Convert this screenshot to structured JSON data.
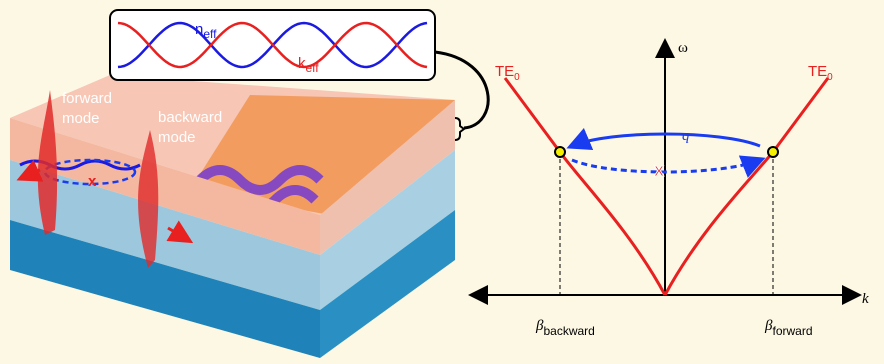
{
  "inset": {
    "n_label": {
      "main": "n",
      "sub": "eff"
    },
    "k_label": {
      "main": "k",
      "sub": "eff"
    }
  },
  "waveguide": {
    "forward_label": [
      "forward",
      "mode"
    ],
    "backward_label": [
      "backward",
      "mode"
    ]
  },
  "dispersion": {
    "y_axis": "ω",
    "x_axis": "k",
    "curve_left": {
      "main": "TE",
      "sub": "0"
    },
    "curve_right": {
      "main": "TE",
      "sub": "0"
    },
    "coupling": "q",
    "beta_backward": {
      "main": "β",
      "sub": "backward"
    },
    "beta_forward": {
      "main": "β",
      "sub": "forward"
    }
  }
}
